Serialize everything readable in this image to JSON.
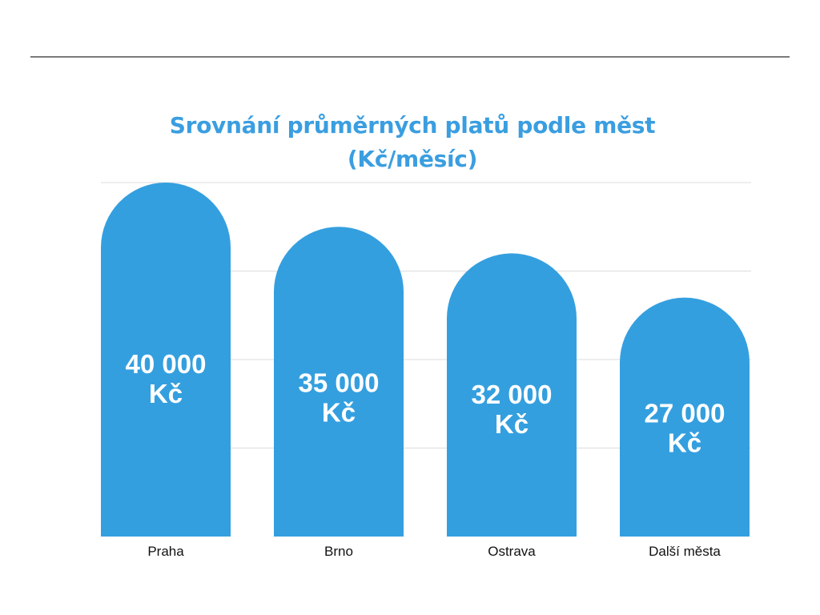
{
  "chart_data": {
    "type": "bar",
    "title_lines": [
      "Srovnání průměrných platů podle měst",
      "(Kč/měsíc)"
    ],
    "categories": [
      "Praha",
      "Brno",
      "Ostrava",
      "Další města"
    ],
    "values": [
      40000,
      35000,
      32000,
      27000
    ],
    "data_labels": [
      [
        "40 000",
        "Kč"
      ],
      [
        "35 000",
        "Kč"
      ],
      [
        "32 000",
        "Kč"
      ],
      [
        "27 000",
        "Kč"
      ]
    ],
    "ylim": [
      0,
      40000
    ],
    "grid": true,
    "legend": "none",
    "bar_color": "#349fdf",
    "label_color": "#ffffff",
    "title_color": "#3a9ee0",
    "grid_color": "#dddddd"
  }
}
